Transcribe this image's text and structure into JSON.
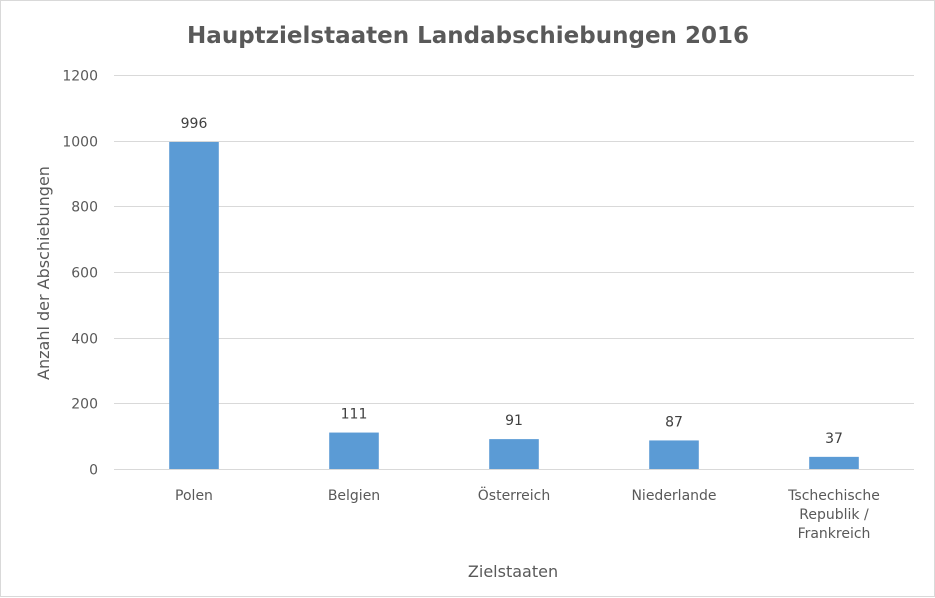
{
  "chart_data": {
    "type": "bar",
    "title": "Hauptzielstaaten Landabschiebungen 2016",
    "xlabel": "Zielstaaten",
    "ylabel": "Anzahl der Abschiebungen",
    "ylim": [
      0,
      1200
    ],
    "yticks": [
      0,
      200,
      400,
      600,
      800,
      1000,
      1200
    ],
    "categories": [
      [
        "Polen"
      ],
      [
        "Belgien"
      ],
      [
        "Österreich"
      ],
      [
        "Niederlande"
      ],
      [
        "Tschechische",
        "Republik /",
        "Frankreich"
      ]
    ],
    "values": [
      996,
      111,
      91,
      87,
      37
    ],
    "data_labels": [
      "996",
      "111",
      "91",
      "87",
      "37"
    ],
    "bar_color": "#5b9bd5",
    "grid": true,
    "legend": "none"
  }
}
